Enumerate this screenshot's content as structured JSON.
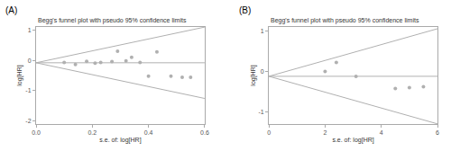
{
  "chart_data": [
    {
      "type": "scatter",
      "title": "Begg's funnel plot with pseudo 95% confidence limits",
      "xlabel": "s.e. of: log[HR]",
      "ylabel": "log[HR]",
      "annotations": [
        "(A)"
      ],
      "xlim": [
        0,
        0.6
      ],
      "ylim": [
        -2.1,
        1.1
      ],
      "xticks": [
        {
          "value": 0,
          "label": "0.0"
        },
        0.2,
        0.4,
        0.6
      ],
      "yticks": [
        -2,
        -1,
        0,
        1
      ],
      "grid": false,
      "series": [
        {
          "type": "line",
          "color": "#b0b0b0",
          "line_style": "solid",
          "x": [
            0,
            0.6
          ],
          "values": [
            -0.08,
            1.096
          ]
        },
        {
          "type": "line",
          "color": "#b0b0b0",
          "line_style": "solid",
          "x": [
            0,
            0.6
          ],
          "values": [
            -0.08,
            -1.256
          ]
        },
        {
          "type": "line",
          "color": "#b0b0b0",
          "line_style": "solid",
          "x": [
            0,
            0.6
          ],
          "values": [
            -0.08,
            -0.08
          ]
        },
        {
          "type": "scatter",
          "color": "#b0b0b0",
          "marker": "circle",
          "x": [
            0.1,
            0.14,
            0.18,
            0.21,
            0.23,
            0.27,
            0.29,
            0.32,
            0.34,
            0.37,
            0.4,
            0.43,
            0.48,
            0.52,
            0.55
          ],
          "values": [
            -0.07,
            -0.14,
            -0.03,
            -0.09,
            -0.07,
            -0.04,
            0.3,
            -0.02,
            0.1,
            -0.07,
            -0.52,
            0.28,
            -0.52,
            -0.56,
            -0.56
          ]
        }
      ]
    },
    {
      "type": "scatter",
      "title": "Begg's funnel plot with pseudo 95% confidence limits",
      "xlabel": "s.e. of: log[HR]",
      "ylabel": "log[HR]",
      "annotations": [
        "(B)"
      ],
      "xlim": [
        0,
        6
      ],
      "ylim": [
        -1.3,
        1.1
      ],
      "xticks": [
        0,
        2,
        4,
        6
      ],
      "yticks": [
        -1,
        0,
        1
      ],
      "grid": false,
      "series": [
        {
          "type": "line",
          "color": "#b0b0b0",
          "line_style": "solid",
          "x": [
            0,
            6
          ],
          "values": [
            -0.12,
            1.056
          ]
        },
        {
          "type": "line",
          "color": "#b0b0b0",
          "line_style": "solid",
          "x": [
            0,
            6
          ],
          "values": [
            -0.12,
            -1.296
          ]
        },
        {
          "type": "line",
          "color": "#b0b0b0",
          "line_style": "solid",
          "x": [
            0,
            6
          ],
          "values": [
            -0.12,
            -0.12
          ]
        },
        {
          "type": "scatter",
          "color": "#b0b0b0",
          "marker": "circle",
          "x": [
            2.0,
            2.4,
            3.1,
            4.5,
            5.0,
            5.5
          ],
          "values": [
            0.0,
            0.22,
            -0.12,
            -0.42,
            -0.4,
            -0.38
          ]
        }
      ]
    }
  ]
}
